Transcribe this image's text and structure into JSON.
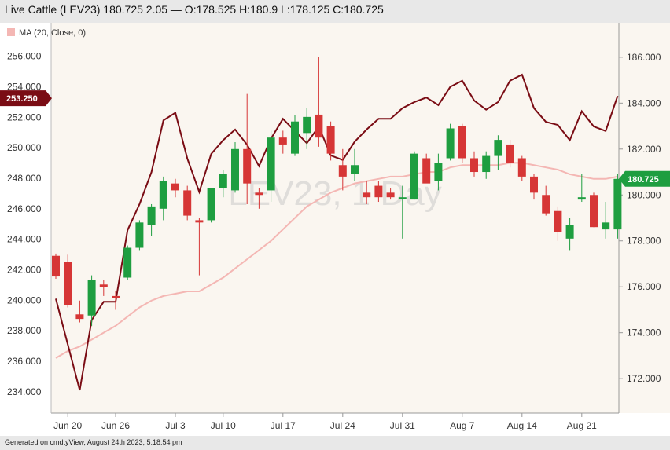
{
  "header": {
    "title": "Live Cattle (LEV23) 180.725 2.05 — O:178.525 H:180.9 L:178.125 C:180.725"
  },
  "footer": {
    "text": "Generated on cmdtyView, August 24th 2023, 5:18:54 pm"
  },
  "colors": {
    "up": "#1e9e40",
    "down": "#d63636",
    "overlay_line": "#7a0c14",
    "ma_line": "#f4b7b4",
    "plot_bg": "#faf6f0",
    "last_badge": "#1e9e40",
    "left_badge": "#7a0c14"
  },
  "chart_data": {
    "type": "candlestick",
    "legend": [
      "MA (20, Close, 0)"
    ],
    "watermark": "LEV23, 1 Day",
    "x_tick_labels": [
      "Jun 20",
      "Jun 26",
      "Jul 3",
      "Jul 10",
      "Jul 17",
      "Jul 24",
      "Jul 31",
      "Aug 7",
      "Aug 14",
      "Aug 21"
    ],
    "x_tick_index": [
      1,
      5,
      10,
      14,
      19,
      24,
      29,
      34,
      39,
      44
    ],
    "right_axis": {
      "label": "",
      "ylim": [
        170.5,
        187.5
      ],
      "ticks": [
        172,
        174,
        176,
        178,
        180,
        182,
        184,
        186
      ]
    },
    "left_axis": {
      "label": "",
      "ylim": [
        232.6,
        258.2
      ],
      "ticks": [
        "234.000",
        "236.000",
        "238.000",
        "240.000",
        "242.000",
        "244.000",
        "246.000",
        "248.000",
        "250.000",
        "252.000",
        "254.000",
        "256.000"
      ]
    },
    "candles": [
      [
        177.35,
        177.45,
        176.35,
        176.45
      ],
      [
        177.1,
        177.4,
        175.1,
        175.2
      ],
      [
        174.8,
        175.4,
        174.45,
        174.6
      ],
      [
        174.75,
        176.5,
        174.3,
        176.3
      ],
      [
        176.1,
        176.3,
        175.6,
        176.0
      ],
      [
        175.6,
        175.8,
        175.0,
        175.5
      ],
      [
        176.4,
        177.8,
        176.3,
        177.7
      ],
      [
        177.7,
        178.9,
        177.6,
        178.8
      ],
      [
        178.7,
        179.6,
        178.2,
        179.5
      ],
      [
        179.4,
        180.8,
        178.9,
        180.6
      ],
      [
        180.5,
        180.7,
        179.9,
        180.2
      ],
      [
        180.2,
        180.4,
        178.9,
        179.1
      ],
      [
        178.9,
        179.0,
        176.5,
        178.8
      ],
      [
        178.9,
        180.3,
        178.8,
        180.3
      ],
      [
        180.3,
        181.1,
        179.9,
        180.9
      ],
      [
        180.2,
        182.3,
        180.1,
        182.0
      ],
      [
        182.0,
        184.4,
        179.6,
        180.5
      ],
      [
        180.1,
        180.3,
        179.4,
        180.0
      ],
      [
        180.2,
        182.8,
        179.7,
        182.5
      ],
      [
        182.5,
        182.8,
        181.8,
        182.2
      ],
      [
        181.8,
        183.5,
        181.7,
        183.2
      ],
      [
        182.7,
        183.8,
        182.0,
        183.4
      ],
      [
        183.5,
        186.0,
        182.1,
        182.5
      ],
      [
        183.0,
        183.2,
        181.5,
        181.8
      ],
      [
        181.3,
        182.0,
        180.2,
        180.8
      ],
      [
        180.9,
        182.0,
        180.6,
        181.3
      ],
      [
        180.1,
        180.6,
        179.6,
        179.9
      ],
      [
        180.4,
        180.6,
        179.7,
        179.9
      ],
      [
        180.1,
        180.3,
        179.8,
        179.9
      ],
      [
        179.9,
        180.4,
        178.1,
        179.9
      ],
      [
        179.8,
        181.9,
        179.8,
        181.8
      ],
      [
        181.6,
        181.8,
        180.6,
        180.5
      ],
      [
        180.6,
        181.8,
        180.2,
        181.4
      ],
      [
        181.6,
        183.1,
        181.5,
        182.9
      ],
      [
        183.0,
        183.1,
        181.4,
        181.6
      ],
      [
        181.6,
        181.9,
        180.8,
        181.0
      ],
      [
        181.0,
        181.9,
        180.7,
        181.7
      ],
      [
        181.7,
        182.6,
        181.1,
        182.4
      ],
      [
        182.2,
        182.4,
        181.2,
        181.4
      ],
      [
        181.6,
        181.7,
        180.6,
        180.8
      ],
      [
        180.8,
        180.9,
        179.8,
        180.1
      ],
      [
        180.0,
        180.4,
        179.1,
        179.2
      ],
      [
        179.3,
        179.5,
        178.0,
        178.4
      ],
      [
        178.1,
        179.0,
        177.6,
        178.7
      ],
      [
        179.8,
        180.9,
        179.7,
        179.9
      ],
      [
        180.0,
        180.1,
        178.6,
        178.6
      ],
      [
        178.5,
        179.7,
        178.1,
        178.8
      ],
      [
        178.5,
        180.9,
        178.1,
        180.7
      ]
    ],
    "overlay_series": [
      240.1,
      237.1,
      234.1,
      238.7,
      239.9,
      239.9,
      244.6,
      246.3,
      248.4,
      251.8,
      252.3,
      249.3,
      247.1,
      249.6,
      250.5,
      251.2,
      250.2,
      248.8,
      250.6,
      251.9,
      251.1,
      250.3,
      251.4,
      249.5,
      249.2,
      250.4,
      251.2,
      251.9,
      251.9,
      252.6,
      253.0,
      253.3,
      252.8,
      254.0,
      254.4,
      253.1,
      252.5,
      253.0,
      254.4,
      254.8,
      252.6,
      251.7,
      251.5,
      250.5,
      252.4,
      251.4,
      251.1,
      253.4
    ],
    "ma_series": [
      172.9,
      173.2,
      173.4,
      173.7,
      174.0,
      174.3,
      174.7,
      175.1,
      175.4,
      175.6,
      175.7,
      175.8,
      175.8,
      176.1,
      176.4,
      176.8,
      177.2,
      177.6,
      178.0,
      178.5,
      179.0,
      179.5,
      179.8,
      180.1,
      180.3,
      180.5,
      180.6,
      180.7,
      180.8,
      180.8,
      180.9,
      181.0,
      181.0,
      181.2,
      181.3,
      181.3,
      181.3,
      181.3,
      181.4,
      181.4,
      181.3,
      181.2,
      181.1,
      180.9,
      180.8,
      180.7,
      180.7,
      180.8
    ],
    "last_price_label": "180.725",
    "left_marker_label": "253.250",
    "left_marker_value": 253.25
  }
}
